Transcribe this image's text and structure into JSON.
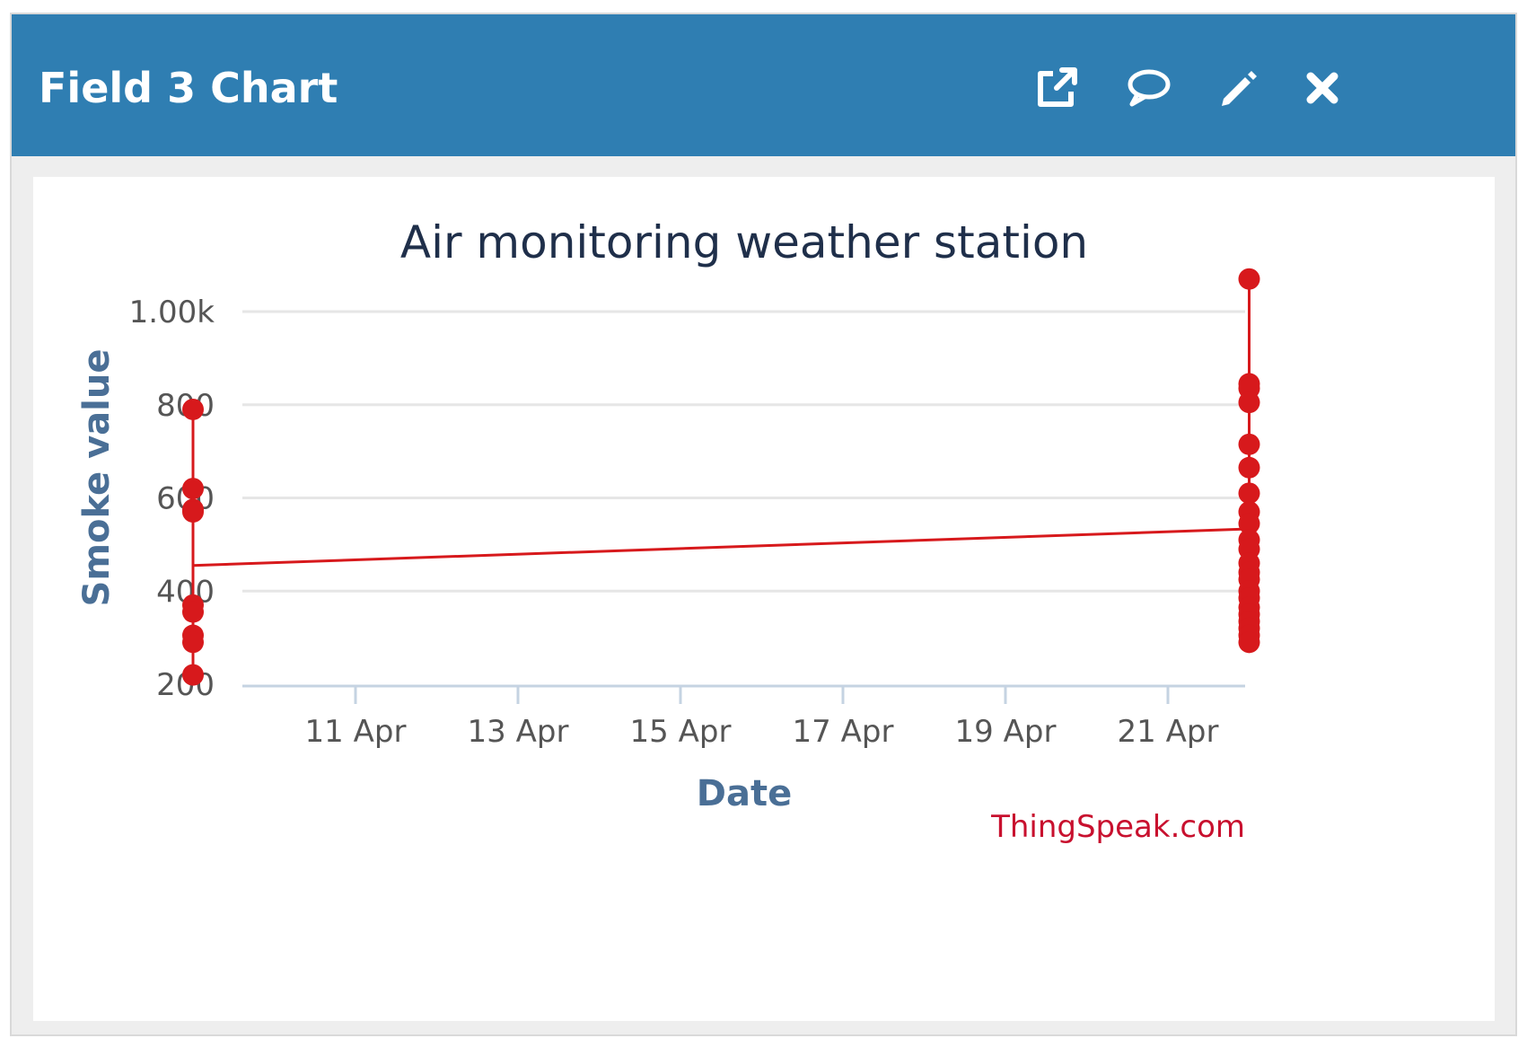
{
  "panel": {
    "title": "Field 3 Chart",
    "icons": [
      "external-link-icon",
      "comment-icon",
      "pencil-icon",
      "close-icon"
    ]
  },
  "colors": {
    "header": "#2f7eb2",
    "series": "#d7191c",
    "grid": "#e6e6e6",
    "axis_title": "#4a6f96",
    "credit": "#c8102e"
  },
  "chart_data": {
    "type": "line",
    "title": "Air monitoring weather station",
    "xlabel": "Date",
    "ylabel": "Smoke value",
    "credit": "ThingSpeak.com",
    "x_ticks": [
      "11 Apr",
      "13 Apr",
      "15 Apr",
      "17 Apr",
      "19 Apr",
      "21 Apr"
    ],
    "y_ticks": [
      "200",
      "400",
      "600",
      "800",
      "1.00k"
    ],
    "ylim": [
      200,
      1000
    ],
    "grid": true,
    "legend": "none",
    "series": [
      {
        "points": [
          {
            "date": "2019-04-09",
            "y": 790
          },
          {
            "date": "2019-04-09",
            "y": 620
          },
          {
            "date": "2019-04-09",
            "y": 575
          },
          {
            "date": "2019-04-09",
            "y": 570
          },
          {
            "date": "2019-04-09",
            "y": 370
          },
          {
            "date": "2019-04-09",
            "y": 355
          },
          {
            "date": "2019-04-09",
            "y": 305
          },
          {
            "date": "2019-04-09",
            "y": 290
          },
          {
            "date": "2019-04-09",
            "y": 220
          },
          {
            "date": "2019-04-22",
            "y": 1070
          },
          {
            "date": "2019-04-22",
            "y": 845
          },
          {
            "date": "2019-04-22",
            "y": 835
          },
          {
            "date": "2019-04-22",
            "y": 805
          },
          {
            "date": "2019-04-22",
            "y": 715
          },
          {
            "date": "2019-04-22",
            "y": 665
          },
          {
            "date": "2019-04-22",
            "y": 610
          },
          {
            "date": "2019-04-22",
            "y": 570
          },
          {
            "date": "2019-04-22",
            "y": 545
          },
          {
            "date": "2019-04-22",
            "y": 510
          },
          {
            "date": "2019-04-22",
            "y": 490
          },
          {
            "date": "2019-04-22",
            "y": 460
          },
          {
            "date": "2019-04-22",
            "y": 440
          },
          {
            "date": "2019-04-22",
            "y": 425
          },
          {
            "date": "2019-04-22",
            "y": 400
          },
          {
            "date": "2019-04-22",
            "y": 385
          },
          {
            "date": "2019-04-22",
            "y": 365
          },
          {
            "date": "2019-04-22",
            "y": 350
          },
          {
            "date": "2019-04-22",
            "y": 335
          },
          {
            "date": "2019-04-22",
            "y": 320
          },
          {
            "date": "2019-04-22",
            "y": 305
          },
          {
            "date": "2019-04-22",
            "y": 290
          }
        ]
      }
    ]
  }
}
